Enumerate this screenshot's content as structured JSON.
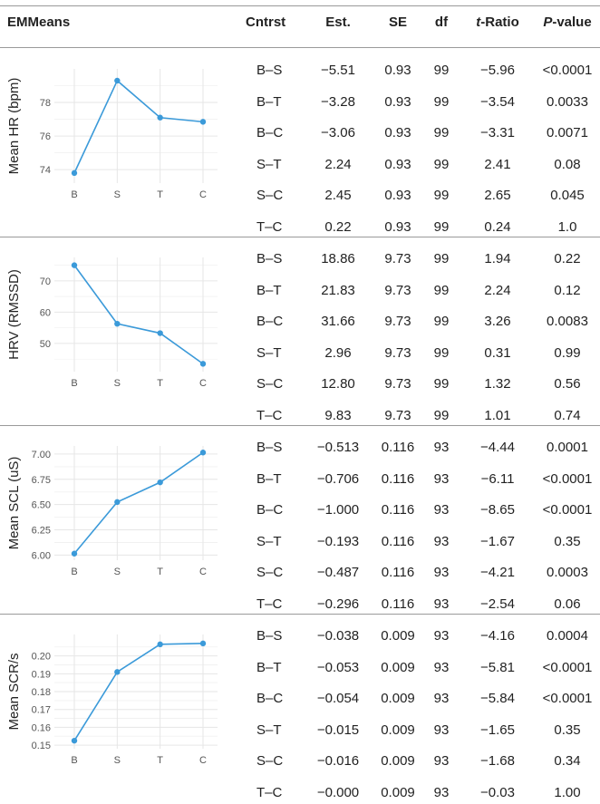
{
  "header": {
    "emmeans": "EMMeans",
    "contrast": "Cntrst",
    "est": "Est.",
    "se": "SE",
    "df": "df",
    "t_ratio_t": "t",
    "t_ratio_rest": "-Ratio",
    "p_value_p": "P",
    "p_value_rest": "-value"
  },
  "colors": {
    "line": "#3b9ad9",
    "grid": "#e6e6e6",
    "rule": "#9a9a9a"
  },
  "chart_data": [
    {
      "type": "line",
      "categories": [
        "B",
        "S",
        "T",
        "C"
      ],
      "values": [
        73.8,
        79.3,
        77.1,
        76.85
      ],
      "ylabel": "Mean HR (bpm)",
      "ylim": [
        73.2,
        80.0
      ],
      "yticks": [
        74,
        76,
        78
      ],
      "grid": true
    },
    {
      "type": "line",
      "categories": [
        "B",
        "S",
        "T",
        "C"
      ],
      "values": [
        75.0,
        56.3,
        53.3,
        43.5
      ],
      "ylabel": "HRV (RMSSD)",
      "ylim": [
        41.0,
        77.5
      ],
      "yticks": [
        50,
        60,
        70
      ],
      "grid": true
    },
    {
      "type": "line",
      "categories": [
        "B",
        "S",
        "T",
        "C"
      ],
      "values": [
        6.015,
        6.525,
        6.72,
        7.015
      ],
      "ylabel": "Mean SCL (uS)",
      "ylim": [
        5.95,
        7.08
      ],
      "yticks": [
        6.0,
        6.25,
        6.5,
        6.75,
        7.0
      ],
      "ytick_labels": [
        "6.00",
        "6.25",
        "6.50",
        "6.75",
        "7.00"
      ],
      "grid": true
    },
    {
      "type": "line",
      "categories": [
        "B",
        "S",
        "T",
        "C"
      ],
      "values": [
        0.1525,
        0.191,
        0.2065,
        0.207
      ],
      "ylabel": "Mean SCR/s",
      "ylim": [
        0.148,
        0.212
      ],
      "yticks": [
        0.15,
        0.16,
        0.17,
        0.18,
        0.19,
        0.2
      ],
      "ytick_labels": [
        "0.15",
        "0.16",
        "0.17",
        "0.18",
        "0.19",
        "0.20"
      ],
      "grid": true
    }
  ],
  "sections": [
    {
      "rows": [
        {
          "contrast": "B–S",
          "est": "−5.51",
          "se": "0.93",
          "df": "99",
          "t_ratio": "−5.96",
          "p_value": "<0.0001"
        },
        {
          "contrast": "B–T",
          "est": "−3.28",
          "se": "0.93",
          "df": "99",
          "t_ratio": "−3.54",
          "p_value": "0.0033"
        },
        {
          "contrast": "B–C",
          "est": "−3.06",
          "se": "0.93",
          "df": "99",
          "t_ratio": "−3.31",
          "p_value": "0.0071"
        },
        {
          "contrast": "S–T",
          "est": "2.24",
          "se": "0.93",
          "df": "99",
          "t_ratio": "2.41",
          "p_value": "0.08"
        },
        {
          "contrast": "S–C",
          "est": "2.45",
          "se": "0.93",
          "df": "99",
          "t_ratio": "2.65",
          "p_value": "0.045"
        },
        {
          "contrast": "T–C",
          "est": "0.22",
          "se": "0.93",
          "df": "99",
          "t_ratio": "0.24",
          "p_value": "1.0"
        }
      ]
    },
    {
      "rows": [
        {
          "contrast": "B–S",
          "est": "18.86",
          "se": "9.73",
          "df": "99",
          "t_ratio": "1.94",
          "p_value": "0.22"
        },
        {
          "contrast": "B–T",
          "est": "21.83",
          "se": "9.73",
          "df": "99",
          "t_ratio": "2.24",
          "p_value": "0.12"
        },
        {
          "contrast": "B–C",
          "est": "31.66",
          "se": "9.73",
          "df": "99",
          "t_ratio": "3.26",
          "p_value": "0.0083"
        },
        {
          "contrast": "S–T",
          "est": "2.96",
          "se": "9.73",
          "df": "99",
          "t_ratio": "0.31",
          "p_value": "0.99"
        },
        {
          "contrast": "S–C",
          "est": "12.80",
          "se": "9.73",
          "df": "99",
          "t_ratio": "1.32",
          "p_value": "0.56"
        },
        {
          "contrast": "T–C",
          "est": "9.83",
          "se": "9.73",
          "df": "99",
          "t_ratio": "1.01",
          "p_value": "0.74"
        }
      ]
    },
    {
      "rows": [
        {
          "contrast": "B–S",
          "est": "−0.513",
          "se": "0.116",
          "df": "93",
          "t_ratio": "−4.44",
          "p_value": "0.0001"
        },
        {
          "contrast": "B–T",
          "est": "−0.706",
          "se": "0.116",
          "df": "93",
          "t_ratio": "−6.11",
          "p_value": "<0.0001"
        },
        {
          "contrast": "B–C",
          "est": "−1.000",
          "se": "0.116",
          "df": "93",
          "t_ratio": "−8.65",
          "p_value": "<0.0001"
        },
        {
          "contrast": "S–T",
          "est": "−0.193",
          "se": "0.116",
          "df": "93",
          "t_ratio": "−1.67",
          "p_value": "0.35"
        },
        {
          "contrast": "S–C",
          "est": "−0.487",
          "se": "0.116",
          "df": "93",
          "t_ratio": "−4.21",
          "p_value": "0.0003"
        },
        {
          "contrast": "T–C",
          "est": "−0.296",
          "se": "0.116",
          "df": "93",
          "t_ratio": "−2.54",
          "p_value": "0.06"
        }
      ]
    },
    {
      "rows": [
        {
          "contrast": "B–S",
          "est": "−0.038",
          "se": "0.009",
          "df": "93",
          "t_ratio": "−4.16",
          "p_value": "0.0004"
        },
        {
          "contrast": "B–T",
          "est": "−0.053",
          "se": "0.009",
          "df": "93",
          "t_ratio": "−5.81",
          "p_value": "<0.0001"
        },
        {
          "contrast": "B–C",
          "est": "−0.054",
          "se": "0.009",
          "df": "93",
          "t_ratio": "−5.84",
          "p_value": "<0.0001"
        },
        {
          "contrast": "S–T",
          "est": "−0.015",
          "se": "0.009",
          "df": "93",
          "t_ratio": "−1.65",
          "p_value": "0.35"
        },
        {
          "contrast": "S–C",
          "est": "−0.016",
          "se": "0.009",
          "df": "93",
          "t_ratio": "−1.68",
          "p_value": "0.34"
        },
        {
          "contrast": "T–C",
          "est": "−0.000",
          "se": "0.009",
          "df": "93",
          "t_ratio": "−0.03",
          "p_value": "1.00"
        }
      ]
    }
  ]
}
